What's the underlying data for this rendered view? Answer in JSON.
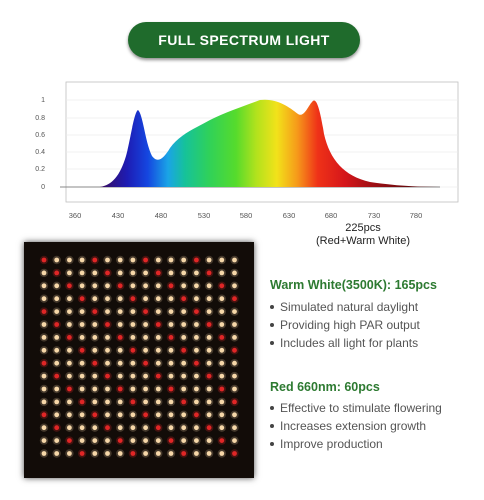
{
  "banner": {
    "title": "FULL SPECTRUM LIGHT"
  },
  "spectrum": {
    "y_ticks": [
      "1",
      "0.8",
      "0.6",
      "0.4",
      "0.2",
      "0"
    ],
    "x_ticks": [
      "360",
      "430",
      "480",
      "530",
      "580",
      "630",
      "680",
      "730",
      "780"
    ],
    "caption_line1": "225pcs",
    "caption_line2": "(Red+Warm White)"
  },
  "panel": {
    "rows": 16,
    "cols": 16,
    "colors": {
      "warm_white": "#f6d7a8",
      "red": "#e02626",
      "background": "#120c08"
    }
  },
  "groups": [
    {
      "label": "Warm White(3500K): ",
      "count": "165pcs",
      "bullets": [
        "Simulated natural daylight",
        "Providing high PAR output",
        "Includes all light for plants"
      ]
    },
    {
      "label": "Red 660nm: ",
      "count": "60pcs",
      "bullets": [
        "Effective to stimulate flowering",
        "Increases extension growth",
        "Improve production"
      ]
    }
  ]
}
